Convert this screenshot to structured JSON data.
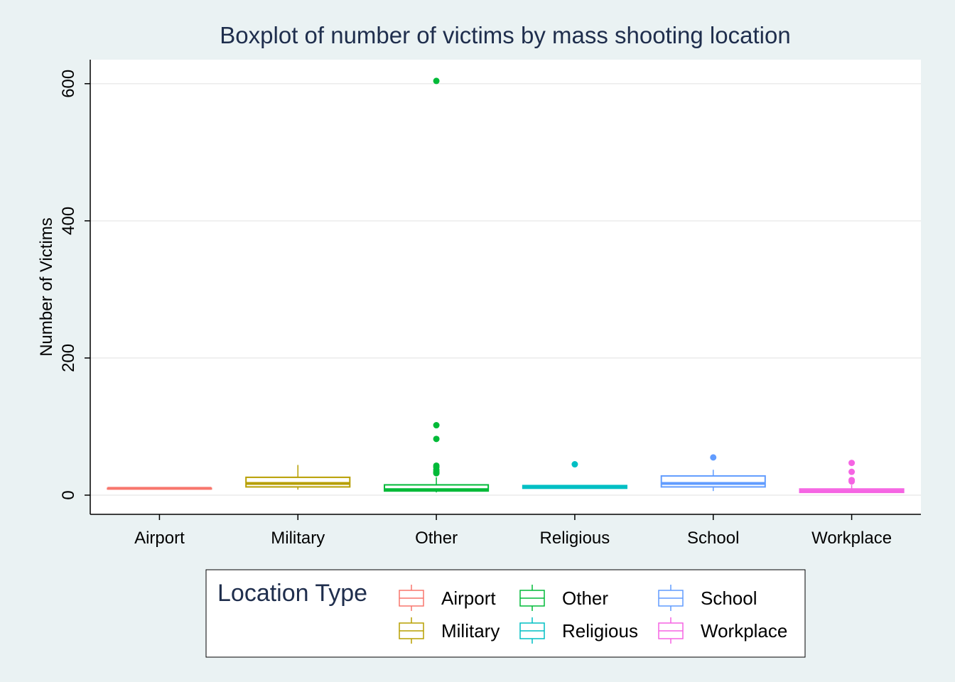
{
  "chart_data": {
    "type": "boxplot",
    "title": "Boxplot of number of victims by mass shooting location",
    "xlabel": "",
    "ylabel": "Number of Victims",
    "ylim": [
      -28,
      635
    ],
    "yticks": [
      0,
      200,
      400,
      600
    ],
    "grid": true,
    "categories": [
      "Airport",
      "Military",
      "Other",
      "Religious",
      "School",
      "Workplace"
    ],
    "series": [
      {
        "name": "Airport",
        "color": "#F8766D",
        "whisker_low": 10,
        "q1": 10,
        "median": 10,
        "q3": 10,
        "whisker_high": 10,
        "outliers": []
      },
      {
        "name": "Military",
        "color": "#B79F00",
        "whisker_low": 8,
        "q1": 12,
        "median": 17,
        "q3": 26,
        "whisker_high": 44,
        "outliers": []
      },
      {
        "name": "Other",
        "color": "#00BA38",
        "whisker_low": 4,
        "q1": 6,
        "median": 8,
        "q3": 15,
        "whisker_high": 26,
        "outliers": [
          32,
          34,
          37,
          41,
          43,
          82,
          102,
          604
        ]
      },
      {
        "name": "Religious",
        "color": "#00BFC4",
        "whisker_low": 10,
        "q1": 10,
        "median": 12,
        "q3": 14,
        "whisker_high": 15,
        "outliers": [
          45
        ]
      },
      {
        "name": "School",
        "color": "#619CFF",
        "whisker_low": 6,
        "q1": 12,
        "median": 17,
        "q3": 28,
        "whisker_high": 37,
        "outliers": [
          55
        ]
      },
      {
        "name": "Workplace",
        "color": "#F564E3",
        "whisker_low": 4,
        "q1": 4,
        "median": 6,
        "q3": 9,
        "whisker_high": 15,
        "outliers": [
          20,
          22,
          34,
          47
        ]
      }
    ],
    "legend": {
      "title": "Location Type",
      "position": "bottom",
      "entries": [
        "Airport",
        "Military",
        "Other",
        "Religious",
        "School",
        "Workplace"
      ]
    }
  },
  "colors": {
    "background": "#EAF2F3",
    "panel": "#FFFFFF",
    "grid": "#EBEBEB",
    "title_text": "#1F2E4D",
    "axis": "#000000"
  }
}
